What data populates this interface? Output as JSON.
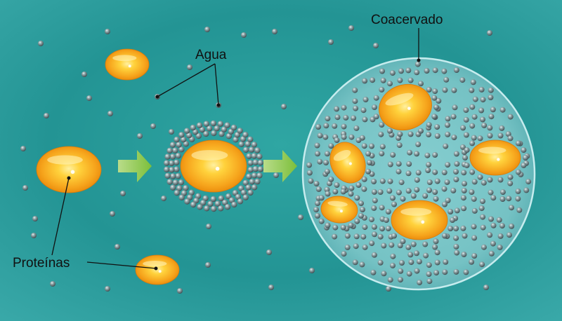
{
  "labels": {
    "water": "Agua",
    "coacervate": "Coacervado",
    "proteins": "Proteínas"
  },
  "colors": {
    "background": "#2a9c9c",
    "protein_core": "#ffd23c",
    "protein_edge": "#e8880a",
    "water_molecule": "#5d6f73",
    "coacervate_fill": "#7cc7c9",
    "coacervate_border": "#b7e4e6",
    "arrow": "#8dc63f"
  },
  "icons": {
    "arrow": "right-arrow-icon"
  }
}
